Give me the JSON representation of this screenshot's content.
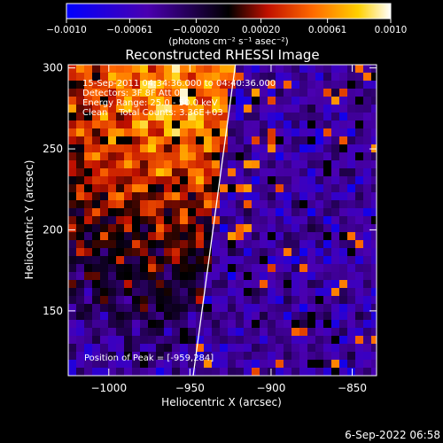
{
  "chart_data": {
    "type": "heatmap",
    "title": "Reconstructed RHESSI Image",
    "xlabel": "Heliocentric X (arcsec)",
    "ylabel": "Heliocentric Y (arcsec)",
    "xlim": [
      -1025,
      -835
    ],
    "ylim": [
      110,
      302
    ],
    "x_ticks": [
      -1000,
      -950,
      -900,
      -850
    ],
    "x_tick_labels": [
      "−1000",
      "−950",
      "−900",
      "−850"
    ],
    "y_ticks": [
      150,
      200,
      250,
      300
    ],
    "y_tick_labels": [
      "150",
      "200",
      "250",
      "300"
    ],
    "colorbar": {
      "range": [
        -0.001,
        0.001
      ],
      "ticks": [
        -0.001,
        -0.00061,
        -0.0002,
        0.0002,
        0.00061,
        0.001
      ],
      "tick_labels": [
        "−0.0010",
        "−0.00061",
        "−0.00020",
        "0.00020",
        "0.00061",
        "0.0010"
      ],
      "label": "(photons cm⁻² s⁻¹ asec⁻²)",
      "colors": [
        "#0000ff",
        "#4a00b0",
        "#000000",
        "#c01000",
        "#ff6a00",
        "#ffd000",
        "#ffffff"
      ]
    },
    "annotations": [
      "15-Sep-2011 04:34:36.000 to 04:40:36.000",
      "Detectors: 3F 8F Att 0",
      "Energy Range: 25.0 - 50.0 keV",
      "Clean    Total Counts: 3.36E+03"
    ],
    "peak_label": "Position of Peak = [-959,284]",
    "peak_position": [
      -959,
      284
    ],
    "limb": {
      "x_top": -922,
      "x_bottom": -948
    },
    "grid": false
  },
  "footer": {
    "timestamp": "6-Sep-2022 06:58"
  }
}
